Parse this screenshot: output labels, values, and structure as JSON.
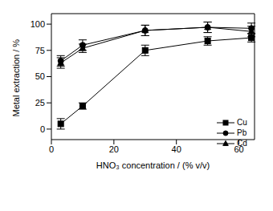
{
  "chart_data": {
    "type": "line",
    "x_label": "HNO₃ concentration / (% v/v)",
    "y_label": "Metal extraction / %",
    "x": [
      3,
      10,
      30,
      50,
      64
    ],
    "series": [
      {
        "name": "Cu",
        "color": "#000000",
        "marker": "square",
        "values": [
          5,
          22,
          75,
          84,
          87
        ],
        "errors": [
          5,
          3,
          5,
          4,
          4
        ]
      },
      {
        "name": "Pb",
        "color": "#000000",
        "marker": "circle",
        "values": [
          65,
          80,
          94,
          97,
          96
        ],
        "errors": [
          5,
          5,
          5,
          5,
          5
        ]
      },
      {
        "name": "Cd",
        "color": "#000000",
        "marker": "triangle",
        "values": [
          63,
          77,
          94,
          97,
          93
        ],
        "errors": [
          5,
          4,
          5,
          5,
          5
        ]
      }
    ],
    "xlim": [
      0,
      65
    ],
    "ylim": [
      -10,
      110
    ],
    "xticks": [
      0,
      20,
      40,
      60
    ],
    "yticks": [
      0,
      25,
      50,
      75,
      100
    ],
    "legend": "bottom right"
  }
}
